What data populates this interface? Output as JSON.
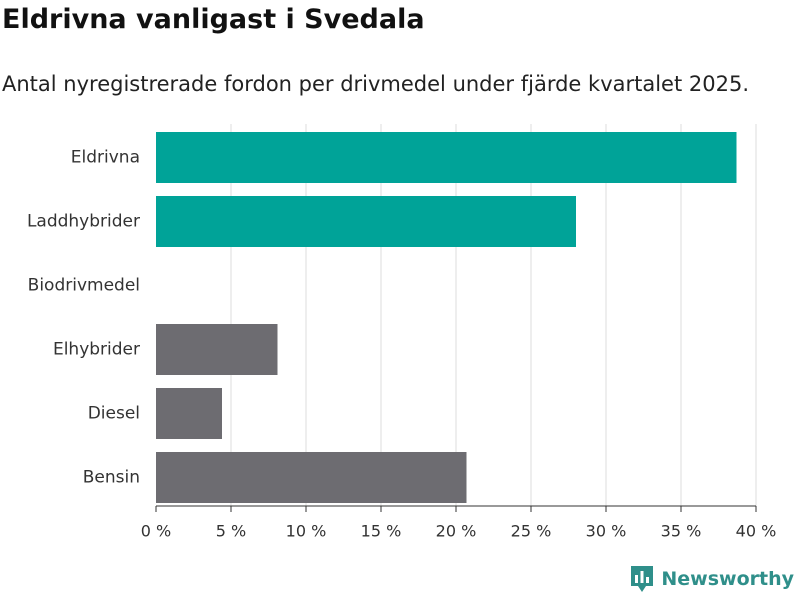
{
  "title": "Eldrivna vanligast i Svedala",
  "subtitle": "Antal nyregistrerade fordon per drivmedel under fjärde kvartalet 2025.",
  "brand": "Newsworthy",
  "colors": {
    "highlight": "#00a398",
    "other": "#6d6c71",
    "grid": "#dddddd",
    "axis": "#333333",
    "brand": "#2f8f8a"
  },
  "chart_data": {
    "type": "bar",
    "orientation": "horizontal",
    "title": "Eldrivna vanligast i Svedala",
    "subtitle": "Antal nyregistrerade fordon per drivmedel under fjärde kvartalet 2025.",
    "categories": [
      "Eldrivna",
      "Laddhybrider",
      "Biodrivmedel",
      "Elhybrider",
      "Diesel",
      "Bensin"
    ],
    "values": [
      38.7,
      28.0,
      0,
      8.1,
      4.4,
      20.7
    ],
    "highlighted": [
      true,
      true,
      false,
      false,
      false,
      false
    ],
    "xlim": [
      0,
      40
    ],
    "xticks": [
      0,
      5,
      10,
      15,
      20,
      25,
      30,
      35,
      40
    ],
    "xtick_labels": [
      "0 %",
      "5 %",
      "10 %",
      "15 %",
      "20 %",
      "25 %",
      "30 %",
      "35 %",
      "40 %"
    ],
    "xlabel": "",
    "ylabel": "",
    "grid": true
  }
}
